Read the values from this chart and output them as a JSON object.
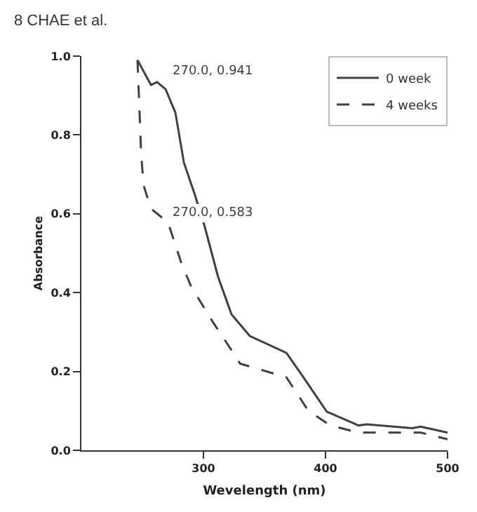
{
  "chart_data": {
    "type": "line",
    "xlabel": "Wevelength (nm)",
    "ylabel": "Absorbance",
    "xlim": [
      200,
      500
    ],
    "xticks": [
      300,
      400,
      500
    ],
    "ylim": [
      0,
      1.0
    ],
    "yticks": [
      {
        "value": 0,
        "label": "0.0"
      },
      {
        "value": 0.2,
        "label": "0.2"
      },
      {
        "value": 0.4,
        "label": "0.4"
      },
      {
        "value": 0.6,
        "label": "0.6"
      },
      {
        "value": 0.8,
        "label": "0.8"
      },
      {
        "value": 1.0,
        "label": "1.0"
      }
    ],
    "legend": "top right",
    "series": [
      {
        "name": "0 week",
        "color": "#404040",
        "line_style": "solid",
        "x": [
          246,
          257,
          262,
          269,
          277,
          284,
          293,
          301,
          312,
          323,
          338,
          368,
          382,
          401,
          427,
          434,
          471,
          478,
          500
        ],
        "values": [
          0.99,
          0.927,
          0.934,
          0.916,
          0.857,
          0.73,
          0.648,
          0.568,
          0.44,
          0.345,
          0.29,
          0.247,
          0.185,
          0.098,
          0.063,
          0.066,
          0.056,
          0.06,
          0.045
        ]
      },
      {
        "name": "4 weeks",
        "color": "#404040",
        "line_style": "dashed",
        "x": [
          246,
          249,
          251,
          257,
          271,
          282,
          290,
          308,
          323,
          330,
          368,
          386,
          404,
          427,
          478,
          500
        ],
        "values": [
          0.99,
          0.75,
          0.672,
          0.613,
          0.578,
          0.474,
          0.415,
          0.324,
          0.254,
          0.22,
          0.185,
          0.1,
          0.063,
          0.045,
          0.045,
          0.028
        ]
      }
    ],
    "annotations": [
      "8 CHAE et al.",
      "270.0, 0.941",
      "270.0, 0.583"
    ]
  }
}
